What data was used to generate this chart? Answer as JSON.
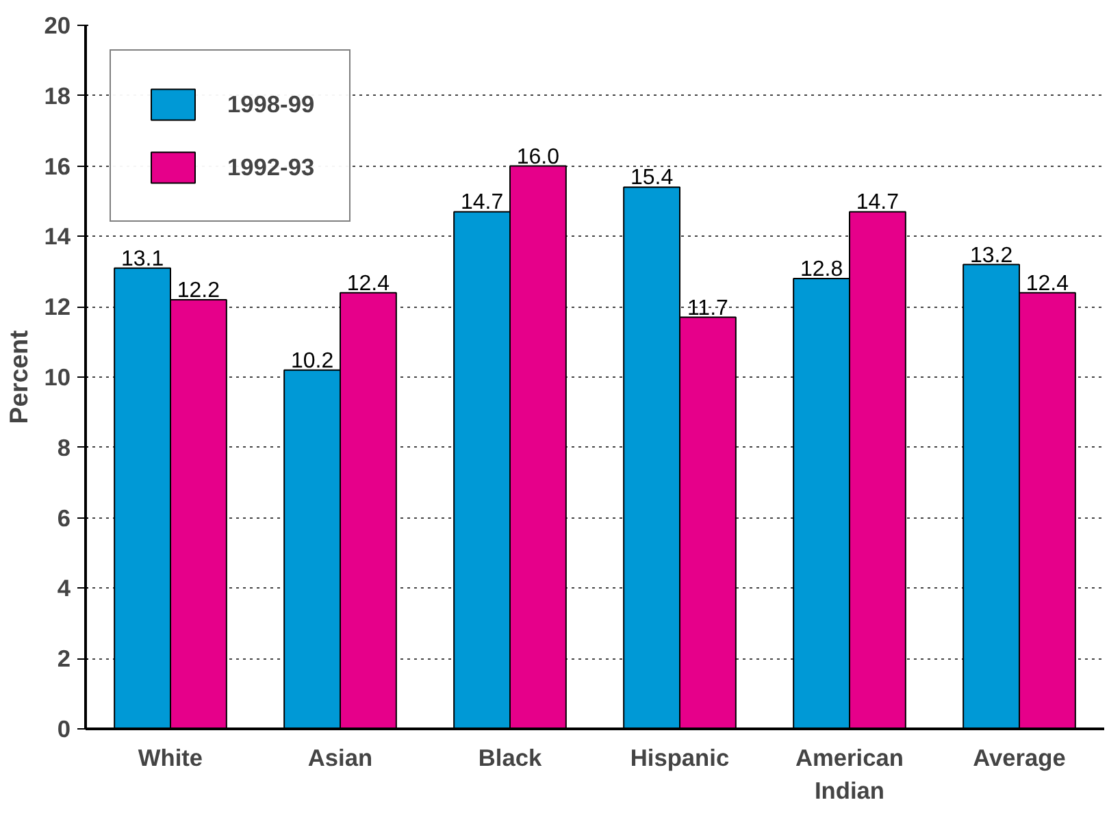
{
  "chart_data": {
    "type": "bar",
    "ylabel": "Percent",
    "categories": [
      "White",
      "Asian",
      "Black",
      "Hispanic",
      "American Indian",
      "Average"
    ],
    "series": [
      {
        "name": "1998-99",
        "color": "#0099d6",
        "values": [
          13.1,
          10.2,
          14.7,
          15.4,
          12.8,
          13.2
        ],
        "value_labels": [
          "13.1",
          "10.2",
          "14.7",
          "15.4",
          "12.8",
          "13.2"
        ]
      },
      {
        "name": "1992-93",
        "color": "#e6008a",
        "values": [
          12.2,
          12.4,
          16.0,
          11.7,
          14.7,
          12.4
        ],
        "value_labels": [
          "12.2",
          "12.4",
          "16.0",
          "11.7",
          "14.7",
          "12.4"
        ]
      }
    ],
    "ylim": [
      0,
      20
    ],
    "yticks": [
      0,
      2,
      4,
      6,
      8,
      10,
      12,
      14,
      16,
      18,
      20
    ],
    "grid": "y",
    "legend": "top left"
  }
}
